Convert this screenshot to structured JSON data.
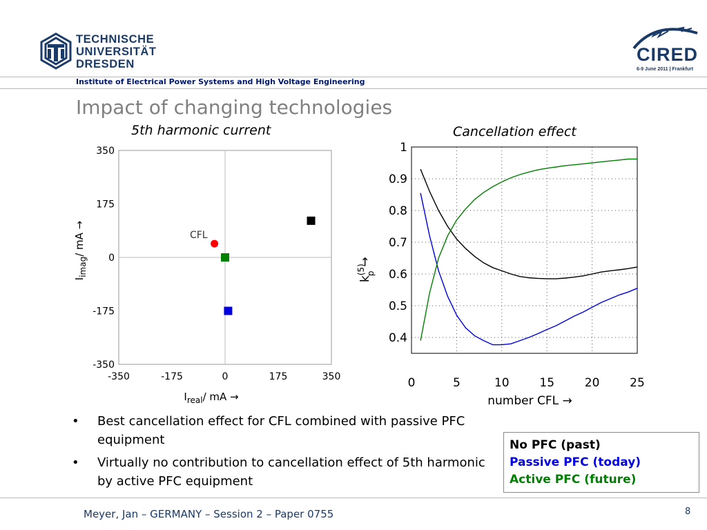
{
  "header": {
    "university_lines": [
      "TECHNISCHE",
      "UNIVERSITÄT",
      "DRESDEN"
    ],
    "institute": "Institute of Electrical Power Systems and High Voltage Engineering",
    "cired_logo_text": "CIRED",
    "cired_logo_date": "6-9 June 2011 | Frankfurt"
  },
  "slide_title": "Impact of changing technologies",
  "colors": {
    "no_pfc": "#000000",
    "passive_pfc": "#0000e0",
    "active_pfc": "#008000",
    "cfl": "#ff0000",
    "title_gray": "#808080",
    "navy": "#1a3a68"
  },
  "chart_data": [
    {
      "type": "scatter",
      "title": "5th harmonic current",
      "xlabel_main": "I",
      "xlabel_sub": "real",
      "xlabel_rest": "/ mA →",
      "ylabel_main": "I",
      "ylabel_sub": "imag",
      "ylabel_rest": "/ mA →",
      "xlim": [
        -350,
        350
      ],
      "ylim": [
        -350,
        350
      ],
      "xticks": [
        -350,
        -175,
        0,
        175,
        350
      ],
      "yticks": [
        -350,
        -175,
        0,
        175,
        350
      ],
      "xtick_labels": [
        "-350",
        "-175",
        "0",
        "175",
        "350"
      ],
      "ytick_labels": [
        "-350",
        "-175",
        "0",
        "175",
        "350"
      ],
      "points": [
        {
          "x": -35,
          "y": 45,
          "marker": "circle",
          "color": "#ff0000",
          "label": "CFL"
        },
        {
          "x": 283,
          "y": 120,
          "marker": "square",
          "color": "#000000",
          "label": ""
        },
        {
          "x": 0,
          "y": 0,
          "marker": "square",
          "color": "#008000",
          "label": ""
        },
        {
          "x": 10,
          "y": -175,
          "marker": "square",
          "color": "#0000e0",
          "label": ""
        }
      ]
    },
    {
      "type": "line",
      "title": "Cancellation effect",
      "xlabel": "number CFL →",
      "ylabel_main": "k",
      "ylabel_sup": "(5)",
      "ylabel_sub": "p",
      "ylabel_arrow": "→",
      "xlim": [
        0,
        25
      ],
      "ylim": [
        0.35,
        1
      ],
      "grid": true,
      "xticks": [
        0,
        5,
        10,
        15,
        20,
        25
      ],
      "yticks": [
        0.4,
        0.5,
        0.6,
        0.7,
        0.8,
        0.9,
        1
      ],
      "xtick_labels": [
        "0",
        "5",
        "10",
        "15",
        "20",
        "25"
      ],
      "ytick_labels": [
        "0.4",
        "0.5",
        "0.6",
        "0.7",
        "0.8",
        "0.9",
        "1"
      ],
      "series": [
        {
          "color": "#000000",
          "x": [
            1,
            2,
            3,
            4,
            5,
            6,
            7,
            8,
            9,
            10,
            11,
            12,
            13,
            14,
            15,
            16,
            17,
            18,
            19,
            20,
            21,
            22,
            23,
            24,
            25
          ],
          "y": [
            0.93,
            0.86,
            0.8,
            0.75,
            0.71,
            0.68,
            0.655,
            0.635,
            0.62,
            0.61,
            0.6,
            0.592,
            0.588,
            0.586,
            0.585,
            0.585,
            0.587,
            0.59,
            0.594,
            0.6,
            0.606,
            0.61,
            0.613,
            0.617,
            0.622
          ]
        },
        {
          "color": "#0000e0",
          "x": [
            1,
            2,
            3,
            4,
            5,
            6,
            7,
            8,
            9,
            10,
            11,
            12,
            13,
            14,
            15,
            16,
            17,
            18,
            19,
            20,
            21,
            22,
            23,
            24,
            25
          ],
          "y": [
            0.855,
            0.72,
            0.61,
            0.53,
            0.47,
            0.43,
            0.405,
            0.39,
            0.377,
            0.377,
            0.38,
            0.39,
            0.4,
            0.412,
            0.425,
            0.437,
            0.452,
            0.467,
            0.48,
            0.495,
            0.51,
            0.522,
            0.534,
            0.543,
            0.555
          ]
        },
        {
          "color": "#008000",
          "x": [
            1,
            2,
            3,
            4,
            5,
            6,
            7,
            8,
            9,
            10,
            11,
            12,
            13,
            14,
            15,
            16,
            17,
            18,
            19,
            20,
            21,
            22,
            23,
            24,
            25
          ],
          "y": [
            0.39,
            0.54,
            0.65,
            0.72,
            0.77,
            0.805,
            0.835,
            0.857,
            0.875,
            0.89,
            0.903,
            0.913,
            0.921,
            0.928,
            0.933,
            0.937,
            0.941,
            0.944,
            0.947,
            0.95,
            0.953,
            0.956,
            0.959,
            0.962,
            0.962
          ]
        }
      ]
    }
  ],
  "bullets": [
    "Best cancellation effect for CFL combined with passive PFC equipment",
    "Virtually no contribution to cancellation effect of 5th harmonic by active PFC equipment"
  ],
  "bullet_symbol": "•",
  "legend": [
    {
      "label": "No PFC (past)",
      "color": "#000000"
    },
    {
      "label": "Passive PFC (today)",
      "color": "#0000e0"
    },
    {
      "label": "Active PFC (future)",
      "color": "#008000"
    }
  ],
  "footer": "Meyer, Jan – GERMANY – Session 2 – Paper 0755",
  "page_number": "8"
}
